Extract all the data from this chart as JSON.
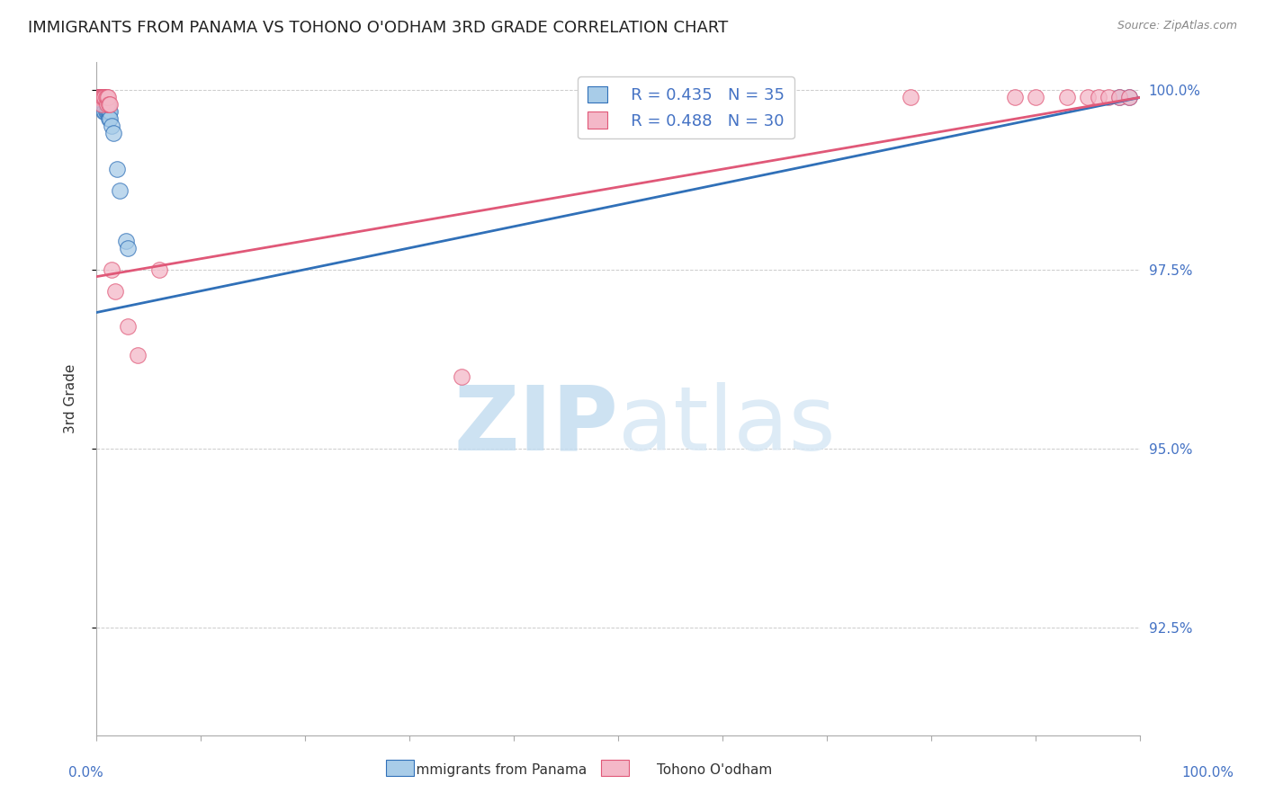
{
  "title": "IMMIGRANTS FROM PANAMA VS TOHONO O'ODHAM 3RD GRADE CORRELATION CHART",
  "source": "Source: ZipAtlas.com",
  "ylabel": "3rd Grade",
  "ylabel_right_labels": [
    "100.0%",
    "97.5%",
    "95.0%",
    "92.5%"
  ],
  "ylabel_right_values": [
    1.0,
    0.975,
    0.95,
    0.925
  ],
  "legend_label1": "Immigrants from Panama",
  "legend_label2": "Tohono O'odham",
  "legend_r1": "R = 0.435",
  "legend_n1": "N = 35",
  "legend_r2": "R = 0.488",
  "legend_n2": "N = 30",
  "color_blue": "#a8cce8",
  "color_pink": "#f4b8c8",
  "line_blue": "#3070b8",
  "line_pink": "#e05878",
  "blue_points_x": [
    0.001,
    0.002,
    0.003,
    0.003,
    0.004,
    0.004,
    0.004,
    0.005,
    0.005,
    0.006,
    0.006,
    0.007,
    0.007,
    0.007,
    0.007,
    0.008,
    0.008,
    0.009,
    0.009,
    0.01,
    0.01,
    0.011,
    0.011,
    0.012,
    0.012,
    0.013,
    0.013,
    0.015,
    0.016,
    0.02,
    0.022,
    0.028,
    0.03,
    0.98,
    0.99
  ],
  "blue_points_y": [
    0.999,
    0.999,
    0.999,
    0.999,
    0.999,
    0.999,
    0.998,
    0.999,
    0.998,
    0.999,
    0.998,
    0.999,
    0.999,
    0.998,
    0.997,
    0.998,
    0.997,
    0.998,
    0.997,
    0.998,
    0.997,
    0.998,
    0.997,
    0.997,
    0.996,
    0.997,
    0.996,
    0.995,
    0.994,
    0.989,
    0.986,
    0.979,
    0.978,
    0.999,
    0.999
  ],
  "pink_points_x": [
    0.001,
    0.002,
    0.003,
    0.004,
    0.005,
    0.005,
    0.006,
    0.007,
    0.008,
    0.009,
    0.01,
    0.01,
    0.011,
    0.012,
    0.013,
    0.015,
    0.018,
    0.03,
    0.04,
    0.06,
    0.35,
    0.78,
    0.88,
    0.9,
    0.93,
    0.95,
    0.96,
    0.97,
    0.98,
    0.99
  ],
  "pink_points_y": [
    0.999,
    0.999,
    0.999,
    0.999,
    0.999,
    0.998,
    0.999,
    0.999,
    0.999,
    0.999,
    0.998,
    0.999,
    0.999,
    0.998,
    0.998,
    0.975,
    0.972,
    0.967,
    0.963,
    0.975,
    0.96,
    0.999,
    0.999,
    0.999,
    0.999,
    0.999,
    0.999,
    0.999,
    0.999,
    0.999
  ],
  "xmin": 0.0,
  "xmax": 1.0,
  "ymin": 0.91,
  "ymax": 1.004,
  "grid_color": "#cccccc",
  "background_color": "#ffffff",
  "title_fontsize": 13,
  "legend_fontsize": 13
}
